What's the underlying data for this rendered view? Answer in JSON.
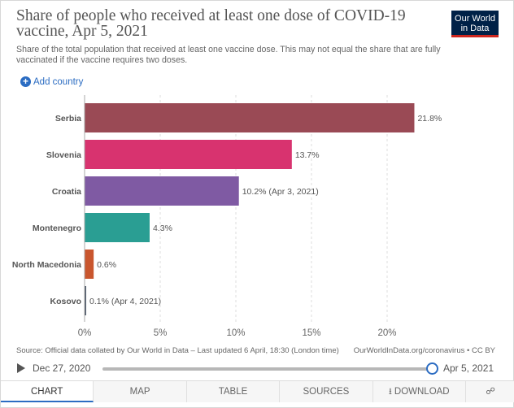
{
  "header": {
    "title": "Share of people who received at least one dose of COVID-19 vaccine, Apr 5, 2021",
    "subtitle": "Share of the total population that received at least one vaccine dose. This may not equal the share that are fully vaccinated if the vaccine requires two doses.",
    "logo_line1": "Our World",
    "logo_line2": "in Data",
    "add_country": "Add country"
  },
  "chart_data": {
    "type": "bar",
    "orientation": "horizontal",
    "categories": [
      "Serbia",
      "Slovenia",
      "Croatia",
      "Montenegro",
      "North Macedonia",
      "Kosovo"
    ],
    "values": [
      21.8,
      13.7,
      10.2,
      4.3,
      0.6,
      0.1
    ],
    "value_labels": [
      "21.8%",
      "13.7%",
      "10.2% (Apr 3, 2021)",
      "4.3%",
      "0.6%",
      "0.1% (Apr 4, 2021)"
    ],
    "colors": [
      "#9a4a55",
      "#d8336f",
      "#7f5aa3",
      "#2a9e93",
      "#c9562e",
      "#4f5a6a"
    ],
    "x_ticks": [
      0,
      5,
      10,
      15,
      20
    ],
    "x_tick_labels": [
      "0%",
      "5%",
      "10%",
      "15%",
      "20%"
    ],
    "xlim": [
      0,
      22.5
    ],
    "grid": true
  },
  "footer": {
    "source": "Source: Official data collated by Our World in Data – Last updated 6 April, 18:30 (London time)",
    "license": "OurWorldInData.org/coronavirus • CC BY"
  },
  "timeline": {
    "start": "Dec 27, 2020",
    "end": "Apr 5, 2021"
  },
  "tabs": [
    {
      "label": "CHART"
    },
    {
      "label": "MAP"
    },
    {
      "label": "TABLE"
    },
    {
      "label": "SOURCES"
    },
    {
      "label": "DOWNLOAD"
    }
  ],
  "colors": {
    "accent": "#2b6cc2",
    "logo_bg": "#002147",
    "logo_bar": "#ce261e"
  }
}
